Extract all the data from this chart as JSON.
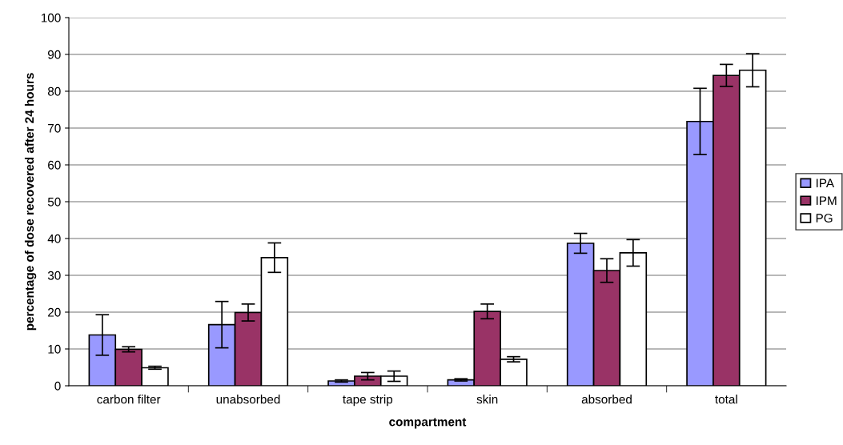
{
  "chart_data": {
    "type": "bar",
    "xlabel": "compartment",
    "ylabel": "percentage of dose recovered after 24 hours",
    "categories": [
      "carbon filter",
      "unabsorbed",
      "tape strip",
      "skin",
      "absorbed",
      "total"
    ],
    "series": [
      {
        "name": "IPA",
        "color": "#9999ff",
        "values": [
          13.8,
          16.6,
          1.3,
          1.6,
          38.7,
          71.8
        ],
        "errors": [
          5.5,
          6.3,
          0.3,
          0.3,
          2.7,
          9
        ]
      },
      {
        "name": "IPM",
        "color": "#993366",
        "values": [
          9.9,
          19.9,
          2.6,
          20.2,
          31.3,
          84.3
        ],
        "errors": [
          0.7,
          2.3,
          1,
          2,
          3.2,
          3
        ]
      },
      {
        "name": "PG",
        "color": "#ffffff",
        "values": [
          4.9,
          34.8,
          2.6,
          7.2,
          36.1,
          85.7
        ],
        "errors": [
          0.4,
          4,
          1.4,
          0.7,
          3.6,
          4.5
        ]
      }
    ],
    "ylim": [
      0,
      100
    ],
    "yticks": [
      0,
      10,
      20,
      30,
      40,
      50,
      60,
      70,
      80,
      90,
      100
    ],
    "grid": "y",
    "legend": "right"
  }
}
